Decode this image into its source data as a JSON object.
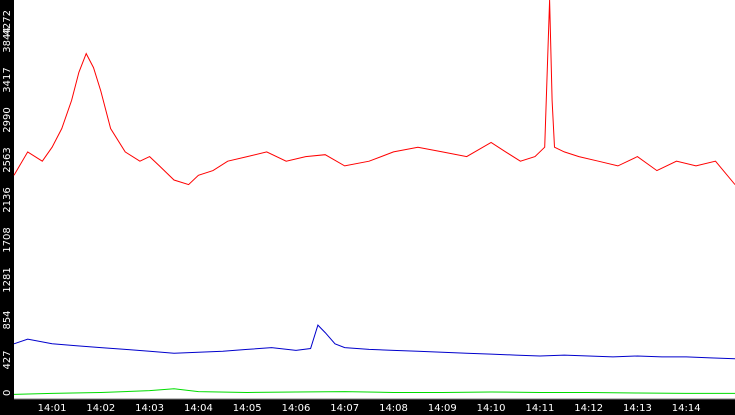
{
  "chart_data": {
    "type": "line",
    "title": "",
    "xlabel": "",
    "ylabel": "",
    "ylim": [
      0,
      4272
    ],
    "y_ticks": [
      "0",
      "427",
      "854",
      "1281",
      "1708",
      "2136",
      "2563",
      "2990",
      "3417",
      "3844",
      "4272"
    ],
    "x_ticks": [
      "14:01",
      "14:02",
      "14:03",
      "14:04",
      "14:05",
      "14:06",
      "14:07",
      "14:08",
      "14:09",
      "14:10",
      "14:11",
      "14:12",
      "14:13",
      "14:14"
    ],
    "x_range_minutes": [
      0.22,
      15.0
    ],
    "grid": false,
    "legend": "none",
    "background": "#ffffff",
    "axis_color": "#000000",
    "series": [
      {
        "color": "#ff0000",
        "x": [
          0.22,
          0.5,
          0.8,
          1.0,
          1.2,
          1.4,
          1.55,
          1.7,
          1.85,
          2.0,
          2.2,
          2.5,
          2.8,
          3.0,
          3.2,
          3.5,
          3.8,
          4.0,
          4.3,
          4.6,
          5.0,
          5.4,
          5.8,
          6.2,
          6.6,
          7.0,
          7.5,
          8.0,
          8.5,
          9.0,
          9.5,
          10.0,
          10.3,
          10.6,
          10.9,
          11.1,
          11.2,
          11.25,
          11.3,
          11.5,
          11.8,
          12.2,
          12.6,
          13.0,
          13.4,
          13.8,
          14.2,
          14.6,
          15.0
        ],
        "values": [
          2400,
          2650,
          2550,
          2700,
          2900,
          3200,
          3500,
          3700,
          3550,
          3300,
          2900,
          2650,
          2550,
          2600,
          2500,
          2350,
          2300,
          2400,
          2450,
          2550,
          2600,
          2650,
          2550,
          2600,
          2620,
          2500,
          2550,
          2650,
          2700,
          2650,
          2600,
          2750,
          2650,
          2550,
          2600,
          2700,
          4272,
          3200,
          2700,
          2650,
          2600,
          2550,
          2500,
          2600,
          2450,
          2550,
          2500,
          2550,
          2300
        ]
      },
      {
        "color": "#0000cc",
        "x": [
          0.22,
          0.5,
          1.0,
          1.5,
          2.0,
          2.5,
          3.0,
          3.5,
          4.0,
          4.5,
          5.0,
          5.5,
          6.0,
          6.3,
          6.45,
          6.6,
          6.8,
          7.0,
          7.5,
          8.0,
          8.5,
          9.0,
          9.5,
          10.0,
          10.5,
          11.0,
          11.5,
          12.0,
          12.5,
          13.0,
          13.5,
          14.0,
          14.5,
          15.0
        ],
        "values": [
          600,
          650,
          600,
          580,
          560,
          540,
          520,
          500,
          510,
          520,
          540,
          560,
          530,
          550,
          800,
          720,
          600,
          560,
          540,
          530,
          520,
          510,
          500,
          490,
          480,
          470,
          480,
          470,
          460,
          470,
          460,
          460,
          450,
          440
        ]
      },
      {
        "color": "#00dd00",
        "x": [
          0.22,
          1.0,
          2.0,
          3.0,
          3.5,
          4.0,
          5.0,
          6.0,
          7.0,
          8.0,
          9.0,
          10.0,
          11.0,
          12.0,
          13.0,
          14.0,
          15.0
        ],
        "values": [
          60,
          70,
          80,
          100,
          120,
          90,
          80,
          85,
          90,
          80,
          80,
          85,
          80,
          80,
          75,
          70,
          70
        ]
      },
      {
        "color": "#000000",
        "x": [
          0.22,
          15.0
        ],
        "values": [
          8,
          8
        ]
      }
    ]
  }
}
